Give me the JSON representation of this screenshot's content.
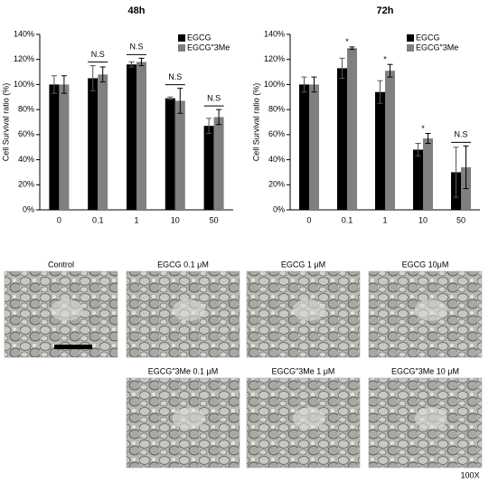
{
  "chart_data": [
    {
      "type": "bar",
      "title": "48h",
      "y_label": "Cell  Survival ratio (%)",
      "categories": [
        "0",
        "0.1",
        "1",
        "10",
        "50"
      ],
      "series": [
        {
          "name": "EGCG",
          "color": "#000000",
          "values": [
            100,
            105,
            116,
            89,
            67
          ],
          "errors": [
            7,
            10,
            2,
            1,
            6
          ]
        },
        {
          "name": "EGCG″3Me",
          "color": "#808080",
          "values": [
            100,
            108,
            118,
            87,
            74
          ],
          "errors": [
            7,
            6,
            3,
            10,
            6
          ]
        }
      ],
      "annotations": [
        null,
        "N.S",
        "N.S",
        "N.S",
        "N.S"
      ],
      "ylim": [
        0,
        140
      ],
      "yticks": [
        {
          "value": 0,
          "label": "0%"
        },
        {
          "value": 20,
          "label": "20%"
        },
        {
          "value": 40,
          "label": "40%"
        },
        {
          "value": 60,
          "label": "60%"
        },
        {
          "value": 80,
          "label": "80%"
        },
        {
          "value": 100,
          "label": "100%"
        },
        {
          "value": 120,
          "label": "120%"
        },
        {
          "value": 140,
          "label": "140%"
        }
      ],
      "legend": "top-right"
    },
    {
      "type": "bar",
      "title": "72h",
      "y_label": "Cell  Survival ratio (%)",
      "categories": [
        "0",
        "0.1",
        "1",
        "10",
        "50"
      ],
      "series": [
        {
          "name": "EGCG",
          "color": "#000000",
          "values": [
            100,
            113,
            94,
            48,
            30
          ],
          "errors": [
            6,
            8,
            9,
            5,
            20
          ]
        },
        {
          "name": "EGCG″3Me",
          "color": "#808080",
          "values": [
            100,
            129,
            111,
            57,
            34
          ],
          "errors": [
            6,
            1,
            5,
            4,
            17
          ]
        }
      ],
      "annotations": [
        null,
        "*",
        "*",
        "*",
        "N.S"
      ],
      "ylim": [
        0,
        140
      ],
      "yticks": [
        {
          "value": 0,
          "label": "0%"
        },
        {
          "value": 20,
          "label": "20%"
        },
        {
          "value": 40,
          "label": "40%"
        },
        {
          "value": 60,
          "label": "60%"
        },
        {
          "value": 80,
          "label": "80%"
        },
        {
          "value": 100,
          "label": "100%"
        },
        {
          "value": 120,
          "label": "120%"
        },
        {
          "value": 140,
          "label": "140%"
        }
      ],
      "legend": "top-right"
    }
  ],
  "images": [
    {
      "label": "Control"
    },
    {
      "label": "EGCG 0.1 μM"
    },
    {
      "label": "EGCG 1 μM"
    },
    {
      "label": "EGCG 10μM"
    },
    {
      "label": "EGCG″3Me 0.1 μM"
    },
    {
      "label": "EGCG″3Me 1 μM"
    },
    {
      "label": "EGCG″3Me 10 μM"
    }
  ],
  "magnification": "100X"
}
